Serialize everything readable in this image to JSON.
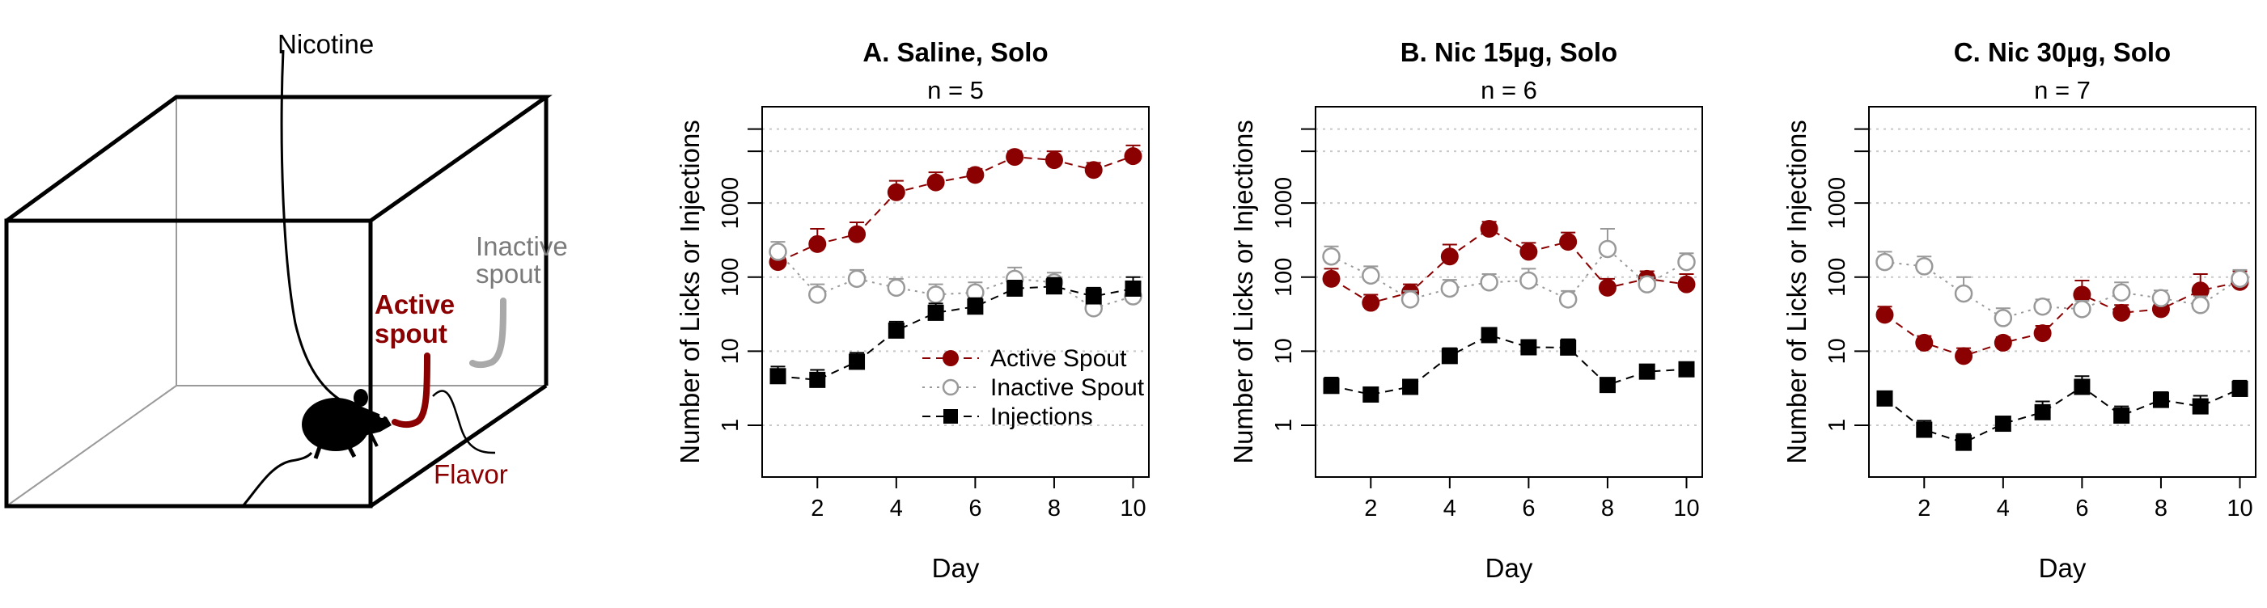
{
  "diagram": {
    "labels": {
      "nicotine": "Nicotine",
      "inactive_spout_line1": "Inactive",
      "inactive_spout_line2": "spout",
      "active_spout_line1": "Active",
      "active_spout_line2": "spout",
      "flavor": "Flavor"
    },
    "icons": [
      "rat-icon",
      "nicotine-tube-icon",
      "active-spout-icon",
      "inactive-spout-icon",
      "operant-box-icon"
    ],
    "colors": {
      "active": "#8b0000",
      "inactive": "#999999",
      "frame": "#000000"
    }
  },
  "chart_data": [
    {
      "type": "line",
      "title": "A. Saline, Solo",
      "subtitle": "n = 5",
      "xlabel": "Day",
      "ylabel": "Number of Licks or Injections",
      "yscale": "log",
      "ylim": [
        0.2,
        20000
      ],
      "xlim": [
        0.6,
        10.4
      ],
      "x": [
        1,
        2,
        3,
        4,
        5,
        6,
        7,
        8,
        9,
        10
      ],
      "xticks": [
        2,
        4,
        6,
        8,
        10
      ],
      "xtick_labels": [
        "2",
        "4",
        "6",
        "8",
        "10"
      ],
      "yticks": [
        1,
        10,
        100,
        1000
      ],
      "ytick_labels": [
        "1",
        "10",
        "100",
        "1000"
      ],
      "gridlines_y": [
        1,
        10,
        100,
        1000,
        10000,
        5000
      ],
      "grid": "horizontal dotted",
      "legend": {
        "placement": "bottom-right",
        "entries": [
          "Active Spout",
          "Inactive Spout",
          "Injections"
        ]
      },
      "series": [
        {
          "name": "Active Spout",
          "color": "#8b0000",
          "marker": "filled-circle",
          "linestyle": "dashed",
          "values": [
            160,
            280,
            380,
            1400,
            1900,
            2400,
            4200,
            3800,
            2800,
            4300
          ],
          "err": [
            220,
            450,
            550,
            2000,
            2600,
            2900,
            5000,
            5000,
            3500,
            6000
          ]
        },
        {
          "name": "Inactive Spout",
          "color": "#999999",
          "marker": "open-circle",
          "linestyle": "dotted",
          "values": [
            220,
            58,
            95,
            72,
            58,
            62,
            95,
            85,
            38,
            55
          ],
          "err": [
            300,
            80,
            125,
            95,
            80,
            85,
            135,
            115,
            48,
            70
          ]
        },
        {
          "name": "Injections",
          "color": "#000000",
          "marker": "filled-square",
          "linestyle": "dashed",
          "values": [
            4.6,
            4.1,
            7.2,
            19,
            33,
            40,
            70,
            75,
            55,
            70
          ],
          "err": [
            6.2,
            5.6,
            9.5,
            25,
            44,
            52,
            90,
            98,
            72,
            100
          ]
        }
      ]
    },
    {
      "type": "line",
      "title": "B. Nic 15µg, Solo",
      "subtitle": "n = 6",
      "xlabel": "Day",
      "ylabel": "Number of Licks or Injections",
      "yscale": "log",
      "ylim": [
        0.2,
        20000
      ],
      "xlim": [
        0.6,
        10.4
      ],
      "x": [
        1,
        2,
        3,
        4,
        5,
        6,
        7,
        8,
        9,
        10
      ],
      "xticks": [
        2,
        4,
        6,
        8,
        10
      ],
      "xtick_labels": [
        "2",
        "4",
        "6",
        "8",
        "10"
      ],
      "yticks": [
        1,
        10,
        100,
        1000
      ],
      "ytick_labels": [
        "1",
        "10",
        "100",
        "1000"
      ],
      "gridlines_y": [
        1,
        10,
        100,
        1000,
        10000,
        5000
      ],
      "grid": "horizontal dotted",
      "series": [
        {
          "name": "Active Spout",
          "color": "#8b0000",
          "marker": "filled-circle",
          "linestyle": "dashed",
          "values": [
            95,
            45,
            62,
            190,
            450,
            220,
            300,
            72,
            95,
            80
          ],
          "err": [
            130,
            58,
            80,
            275,
            560,
            290,
            400,
            95,
            120,
            110
          ]
        },
        {
          "name": "Inactive Spout",
          "color": "#999999",
          "marker": "open-circle",
          "linestyle": "dotted",
          "values": [
            190,
            105,
            50,
            70,
            85,
            90,
            50,
            240,
            80,
            160
          ],
          "err": [
            260,
            140,
            65,
            92,
            110,
            130,
            65,
            450,
            100,
            210
          ]
        },
        {
          "name": "Injections",
          "color": "#000000",
          "marker": "filled-square",
          "linestyle": "dashed",
          "values": [
            3.4,
            2.6,
            3.3,
            8.6,
            16.5,
            11.3,
            11.2,
            3.5,
            5.3,
            5.7
          ],
          "err": [
            4.4,
            3.2,
            4.0,
            11.0,
            20.0,
            13.5,
            14.5,
            4.2,
            6.4,
            6.9
          ]
        }
      ]
    },
    {
      "type": "line",
      "title": "C. Nic 30µg, Solo",
      "subtitle": "n = 7",
      "xlabel": "Day",
      "ylabel": "Number of Licks or Injections",
      "yscale": "log",
      "ylim": [
        0.2,
        20000
      ],
      "xlim": [
        0.6,
        10.4
      ],
      "x": [
        1,
        2,
        3,
        4,
        5,
        6,
        7,
        8,
        9,
        10
      ],
      "xticks": [
        2,
        4,
        6,
        8,
        10
      ],
      "xtick_labels": [
        "2",
        "4",
        "6",
        "8",
        "10"
      ],
      "yticks": [
        1,
        10,
        100,
        1000
      ],
      "ytick_labels": [
        "1",
        "10",
        "100",
        "1000"
      ],
      "gridlines_y": [
        1,
        10,
        100,
        1000,
        10000,
        5000
      ],
      "grid": "horizontal dotted",
      "series": [
        {
          "name": "Active Spout",
          "color": "#8b0000",
          "marker": "filled-circle",
          "linestyle": "dashed",
          "values": [
            31,
            13,
            8.6,
            13,
            17.5,
            58,
            33,
            37,
            66,
            86
          ],
          "err": [
            40,
            16,
            11,
            15.5,
            22,
            90,
            42,
            48,
            110,
            120
          ]
        },
        {
          "name": "Inactive Spout",
          "color": "#999999",
          "marker": "open-circle",
          "linestyle": "dotted",
          "values": [
            160,
            140,
            60,
            28,
            40,
            37,
            62,
            52,
            42,
            95
          ],
          "err": [
            220,
            190,
            100,
            38,
            50,
            48,
            85,
            66,
            55,
            125
          ]
        },
        {
          "name": "Injections",
          "color": "#000000",
          "marker": "filled-square",
          "linestyle": "dashed",
          "values": [
            2.3,
            0.87,
            0.58,
            1.05,
            1.5,
            3.3,
            1.35,
            2.2,
            1.8,
            3.1
          ],
          "err": [
            2.8,
            1.15,
            0.76,
            1.3,
            2.1,
            4.6,
            1.8,
            2.8,
            2.5,
            4.0
          ]
        }
      ]
    }
  ]
}
